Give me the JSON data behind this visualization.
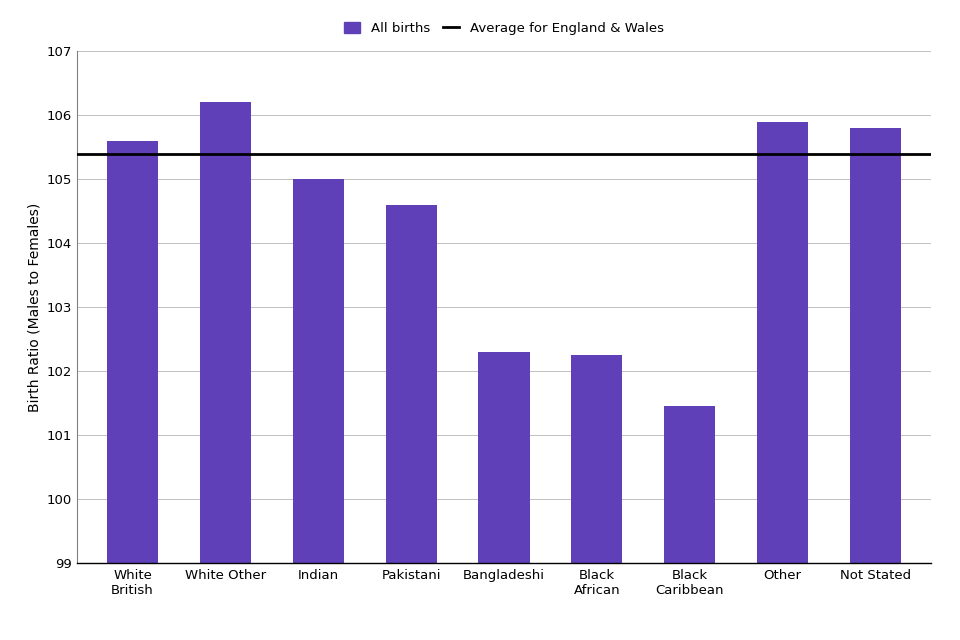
{
  "categories": [
    "White\nBritish",
    "White Other",
    "Indian",
    "Pakistani",
    "Bangladeshi",
    "Black\nAfrican",
    "Black\nCaribbean",
    "Other",
    "Not Stated"
  ],
  "values": [
    105.6,
    106.2,
    105.0,
    104.6,
    102.3,
    102.25,
    101.45,
    105.9,
    105.8
  ],
  "bar_color": "#6040B8",
  "average_line": 105.4,
  "ylabel": "Birth Ratio (Males to Females)",
  "ylim_min": 99,
  "ylim_max": 107,
  "yticks": [
    99,
    100,
    101,
    102,
    103,
    104,
    105,
    106,
    107
  ],
  "legend_bar_label": "All births",
  "legend_line_label": "Average for England & Wales",
  "bar_width": 0.55,
  "axis_fontsize": 10,
  "tick_fontsize": 9.5
}
